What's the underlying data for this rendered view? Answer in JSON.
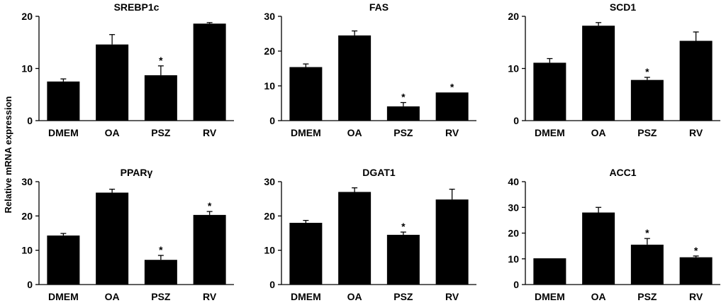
{
  "y_axis_label": "Relative mRNA expression",
  "categories": [
    "DMEM",
    "OA",
    "PSZ",
    "RV"
  ],
  "chart_data": [
    {
      "type": "bar",
      "title": "SREBP1c",
      "ylim": [
        0,
        20
      ],
      "yticks": [
        0,
        10,
        20
      ],
      "categories": [
        "DMEM",
        "OA",
        "PSZ",
        "RV"
      ],
      "values": [
        7.5,
        14.6,
        8.7,
        18.6
      ],
      "errors": [
        0.5,
        1.9,
        1.8,
        0.2
      ],
      "significant": [
        false,
        false,
        true,
        false
      ],
      "marker": "*"
    },
    {
      "type": "bar",
      "title": "FAS",
      "ylim": [
        0,
        30
      ],
      "yticks": [
        0,
        10,
        20,
        30
      ],
      "categories": [
        "DMEM",
        "OA",
        "PSZ",
        "RV"
      ],
      "values": [
        15.4,
        24.5,
        4.1,
        8.1
      ],
      "errors": [
        0.9,
        1.3,
        1.1,
        0
      ],
      "significant": [
        false,
        false,
        true,
        true
      ],
      "marker": "*"
    },
    {
      "type": "bar",
      "title": "SCD1",
      "ylim": [
        0,
        20
      ],
      "yticks": [
        0,
        10,
        20
      ],
      "categories": [
        "DMEM",
        "OA",
        "PSZ",
        "RV"
      ],
      "values": [
        11.1,
        18.2,
        7.8,
        15.3
      ],
      "errors": [
        0.8,
        0.6,
        0.5,
        1.7
      ],
      "significant": [
        false,
        false,
        true,
        false
      ],
      "marker": "*"
    },
    {
      "type": "bar",
      "title": "PPARγ",
      "ylim": [
        0,
        30
      ],
      "yticks": [
        0,
        10,
        20,
        30
      ],
      "categories": [
        "DMEM",
        "OA",
        "PSZ",
        "RV"
      ],
      "values": [
        14.3,
        26.8,
        7.2,
        20.3
      ],
      "errors": [
        0.6,
        1.0,
        1.3,
        1.0
      ],
      "significant": [
        false,
        false,
        true,
        true
      ],
      "marker": "*"
    },
    {
      "type": "bar",
      "title": "DGAT1",
      "ylim": [
        0,
        30
      ],
      "yticks": [
        0,
        10,
        20,
        30
      ],
      "categories": [
        "DMEM",
        "OA",
        "PSZ",
        "RV"
      ],
      "values": [
        18.0,
        27.0,
        14.5,
        24.8
      ],
      "errors": [
        0.7,
        1.2,
        0.8,
        3.0
      ],
      "significant": [
        false,
        false,
        true,
        false
      ],
      "marker": "*"
    },
    {
      "type": "bar",
      "title": "ACC1",
      "ylim": [
        0,
        40
      ],
      "yticks": [
        0,
        10,
        20,
        30,
        40
      ],
      "categories": [
        "DMEM",
        "OA",
        "PSZ",
        "RV"
      ],
      "values": [
        10.2,
        28.0,
        15.5,
        10.6
      ],
      "errors": [
        0,
        2.0,
        2.4,
        0.5
      ],
      "significant": [
        false,
        false,
        true,
        true
      ],
      "marker": "*"
    }
  ]
}
